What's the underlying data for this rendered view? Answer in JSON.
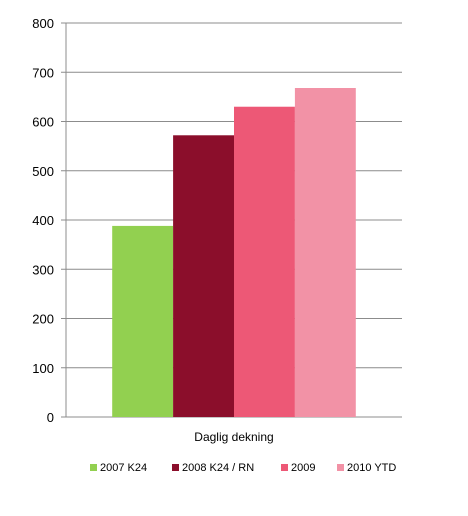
{
  "chart_data": {
    "type": "bar",
    "categories": [
      "Daglig dekning"
    ],
    "series": [
      {
        "name": "2007 K24",
        "values": [
          388
        ],
        "color": "#92d050"
      },
      {
        "name": "2008 K24 / RN",
        "values": [
          572
        ],
        "color": "#8b0e2b"
      },
      {
        "name": "2009",
        "values": [
          630
        ],
        "color": "#ed5876"
      },
      {
        "name": "2010 YTD",
        "values": [
          668
        ],
        "color": "#f292a6"
      }
    ],
    "yticks": [
      0,
      100,
      200,
      300,
      400,
      500,
      600,
      700,
      800
    ],
    "ylim": [
      0,
      800
    ],
    "grid": true,
    "legend_position": "bottom"
  }
}
